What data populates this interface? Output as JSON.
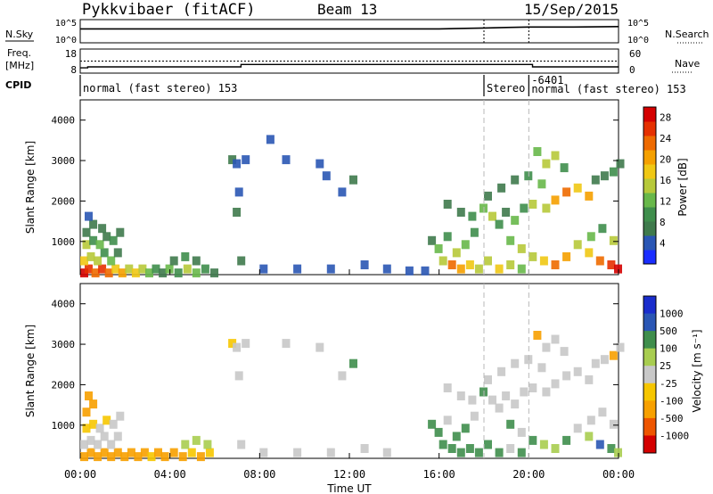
{
  "header": {
    "radar": "Pykkvibaer (fitACF)",
    "beam": "Beam 13",
    "date": "15/Sep/2015"
  },
  "left_labels": {
    "nsky": "N.Sky",
    "freq_line1": "Freq.",
    "freq_line2": "[MHz]",
    "cpid": "CPID"
  },
  "right_labels": {
    "nsearch": "N.Search",
    "nave": "Nave"
  },
  "chart_data": [
    {
      "type": "line",
      "panel": "noise",
      "left_ticks": [
        "10^5",
        "10^0"
      ],
      "right_ticks": [
        "10^5",
        "10^0"
      ],
      "series": [
        {
          "name": "N.Sky",
          "x": [
            "00:00",
            "02:00",
            "04:00",
            "06:00",
            "08:00",
            "10:00",
            "12:00",
            "14:00",
            "16:00",
            "18:00",
            "19:00",
            "20:00",
            "22:00",
            "24:00"
          ],
          "y": [
            3.0,
            3.0,
            3.0,
            3.0,
            3.0,
            3.0,
            3.0,
            3.0,
            3.0,
            3.2,
            3.3,
            3.4,
            3.4,
            3.5
          ]
        },
        {
          "name": "N.Search",
          "x": [
            "00:00",
            "24:00"
          ],
          "y": [
            null,
            null
          ]
        }
      ]
    },
    {
      "type": "line",
      "panel": "frequency",
      "left_ticks": [
        "18",
        "8"
      ],
      "right_ticks": [
        "60",
        "0"
      ],
      "series": [
        {
          "name": "Freq.",
          "x": [
            "00:00",
            "00:20",
            "03:00",
            "07:00",
            "07:10",
            "13:30",
            "14:00",
            "18:00",
            "20:00",
            "20:10",
            "24:00"
          ],
          "y": [
            10.2,
            10.6,
            10.6,
            10.6,
            11.6,
            11.6,
            11.6,
            11.6,
            11.6,
            10.6,
            10.6
          ]
        },
        {
          "name": "Nave",
          "x": [
            "00:00",
            "24:00"
          ],
          "y": [
            30,
            30
          ]
        }
      ]
    },
    {
      "type": "table",
      "panel": "cpid",
      "segments": [
        {
          "start": "00:00",
          "end": "18:00",
          "label": "normal (fast stereo) 153"
        },
        {
          "start": "18:00",
          "end": "20:00",
          "label": "Stereo"
        },
        {
          "start": "20:00",
          "end": "24:00",
          "label": "-6401"
        },
        {
          "start": "20:00",
          "end": "24:00",
          "label": "normal (fast stereo) 153"
        }
      ]
    },
    {
      "type": "heatmap",
      "panel": "power",
      "title": "",
      "xlabel": "",
      "ylabel": "Slant Range [km]",
      "xlim": [
        "00:00",
        "24:00"
      ],
      "ylim": [
        180,
        4500
      ],
      "yticks": [
        1000,
        2000,
        3000,
        4000
      ],
      "colorbar_label": "Power [dB]",
      "colorbar_ticks": [
        4,
        8,
        12,
        16,
        20,
        24,
        28
      ],
      "colorbar_range": [
        0,
        30
      ],
      "cells_t_h_r_value": [
        [
          0.0,
          200,
          28
        ],
        [
          0.2,
          300,
          26
        ],
        [
          0.5,
          200,
          24
        ],
        [
          0.8,
          300,
          27
        ],
        [
          1.1,
          200,
          22
        ],
        [
          1.4,
          300,
          18
        ],
        [
          1.7,
          200,
          20
        ],
        [
          2.0,
          300,
          16
        ],
        [
          2.3,
          200,
          18
        ],
        [
          2.6,
          300,
          14
        ],
        [
          2.9,
          200,
          12
        ],
        [
          3.2,
          300,
          10
        ],
        [
          0.0,
          500,
          18
        ],
        [
          0.3,
          600,
          14
        ],
        [
          0.6,
          500,
          16
        ],
        [
          0.9,
          700,
          10
        ],
        [
          1.2,
          500,
          12
        ],
        [
          1.5,
          700,
          8
        ],
        [
          0.1,
          900,
          14
        ],
        [
          0.4,
          1000,
          10
        ],
        [
          0.7,
          900,
          12
        ],
        [
          1.0,
          1100,
          8
        ],
        [
          1.3,
          1000,
          9
        ],
        [
          1.6,
          1200,
          6
        ],
        [
          0.1,
          1200,
          8
        ],
        [
          0.4,
          1400,
          6
        ],
        [
          0.8,
          1300,
          7
        ],
        [
          0.2,
          1600,
          5
        ],
        [
          3.5,
          200,
          8
        ],
        [
          3.8,
          300,
          12
        ],
        [
          4.2,
          200,
          10
        ],
        [
          4.6,
          300,
          14
        ],
        [
          5.0,
          200,
          12
        ],
        [
          5.4,
          300,
          10
        ],
        [
          5.8,
          200,
          8
        ],
        [
          4.0,
          500,
          7
        ],
        [
          4.5,
          600,
          9
        ],
        [
          5.0,
          500,
          8
        ],
        [
          6.6,
          3000,
          6
        ],
        [
          6.8,
          2900,
          5
        ],
        [
          6.8,
          1700,
          6
        ],
        [
          6.9,
          2200,
          5
        ],
        [
          7.2,
          3000,
          5
        ],
        [
          8.3,
          3500,
          4
        ],
        [
          9.0,
          3000,
          5
        ],
        [
          10.5,
          2900,
          5
        ],
        [
          10.8,
          2600,
          4
        ],
        [
          12.0,
          2500,
          6
        ],
        [
          11.5,
          2200,
          5
        ],
        [
          7.0,
          500,
          6
        ],
        [
          8.0,
          300,
          5
        ],
        [
          9.5,
          300,
          5
        ],
        [
          11.0,
          300,
          4
        ],
        [
          12.5,
          400,
          5
        ],
        [
          13.5,
          300,
          4
        ],
        [
          14.5,
          250,
          4
        ],
        [
          15.2,
          250,
          5
        ],
        [
          15.5,
          1000,
          8
        ],
        [
          15.8,
          800,
          12
        ],
        [
          16.2,
          1100,
          10
        ],
        [
          16.6,
          700,
          14
        ],
        [
          17.0,
          900,
          12
        ],
        [
          17.4,
          1200,
          10
        ],
        [
          16.0,
          500,
          16
        ],
        [
          16.4,
          400,
          22
        ],
        [
          16.8,
          300,
          20
        ],
        [
          17.2,
          400,
          18
        ],
        [
          17.6,
          300,
          16
        ],
        [
          18.0,
          500,
          14
        ],
        [
          16.2,
          1900,
          6
        ],
        [
          16.8,
          1700,
          8
        ],
        [
          17.3,
          1600,
          10
        ],
        [
          17.8,
          1800,
          12
        ],
        [
          18.2,
          1600,
          14
        ],
        [
          18.5,
          1400,
          10
        ],
        [
          18.8,
          1700,
          8
        ],
        [
          19.2,
          1500,
          12
        ],
        [
          19.6,
          1800,
          10
        ],
        [
          20.0,
          1900,
          14
        ],
        [
          18.0,
          2100,
          8
        ],
        [
          18.6,
          2300,
          6
        ],
        [
          19.2,
          2500,
          8
        ],
        [
          19.8,
          2600,
          10
        ],
        [
          20.4,
          2400,
          12
        ],
        [
          20.6,
          1800,
          16
        ],
        [
          21.0,
          2000,
          20
        ],
        [
          21.5,
          2200,
          22
        ],
        [
          22.0,
          2300,
          18
        ],
        [
          22.5,
          2100,
          20
        ],
        [
          20.2,
          3200,
          12
        ],
        [
          20.6,
          2900,
          16
        ],
        [
          21.0,
          3100,
          14
        ],
        [
          21.4,
          2800,
          10
        ],
        [
          22.8,
          2500,
          8
        ],
        [
          23.2,
          2600,
          6
        ],
        [
          23.6,
          2700,
          10
        ],
        [
          23.9,
          2900,
          8
        ],
        [
          19.0,
          1000,
          12
        ],
        [
          19.5,
          800,
          14
        ],
        [
          20.0,
          600,
          16
        ],
        [
          20.5,
          500,
          18
        ],
        [
          21.0,
          400,
          22
        ],
        [
          21.5,
          600,
          20
        ],
        [
          22.0,
          900,
          16
        ],
        [
          22.5,
          700,
          18
        ],
        [
          23.0,
          500,
          24
        ],
        [
          23.5,
          400,
          26
        ],
        [
          23.8,
          300,
          28
        ],
        [
          22.6,
          1100,
          12
        ],
        [
          23.1,
          1300,
          10
        ],
        [
          23.6,
          1000,
          14
        ],
        [
          18.5,
          300,
          18
        ],
        [
          19.0,
          400,
          16
        ],
        [
          19.5,
          300,
          12
        ]
      ]
    },
    {
      "type": "heatmap",
      "panel": "velocity",
      "title": "",
      "xlabel": "Time UT",
      "ylabel": "Slant Range [km]",
      "xlim": [
        "00:00",
        "24:00"
      ],
      "ylim": [
        180,
        4500
      ],
      "yticks": [
        1000,
        2000,
        3000,
        4000
      ],
      "xticks": [
        "00:00",
        "04:00",
        "08:00",
        "12:00",
        "16:00",
        "20:00",
        "00:00"
      ],
      "colorbar_label": "Velocity [m s⁻¹]",
      "colorbar_ticks": [
        1000,
        500,
        100,
        25,
        -25,
        -100,
        -500,
        -1000
      ],
      "cells_t_h_r_value": [
        [
          0.0,
          200,
          -300
        ],
        [
          0.3,
          300,
          -200
        ],
        [
          0.6,
          200,
          -150
        ],
        [
          0.9,
          300,
          -250
        ],
        [
          1.2,
          200,
          -120
        ],
        [
          1.5,
          300,
          -180
        ],
        [
          1.8,
          200,
          -100
        ],
        [
          2.1,
          300,
          -150
        ],
        [
          2.4,
          200,
          -110
        ],
        [
          2.7,
          300,
          -130
        ],
        [
          3.0,
          200,
          -90
        ],
        [
          3.3,
          300,
          -120
        ],
        [
          0.0,
          500,
          0
        ],
        [
          0.3,
          600,
          10
        ],
        [
          0.6,
          500,
          -10
        ],
        [
          0.9,
          700,
          5
        ],
        [
          1.2,
          500,
          0
        ],
        [
          1.5,
          700,
          -5
        ],
        [
          0.1,
          900,
          -60
        ],
        [
          0.4,
          1000,
          -30
        ],
        [
          0.7,
          900,
          0
        ],
        [
          1.0,
          1100,
          -80
        ],
        [
          1.3,
          1000,
          0
        ],
        [
          1.6,
          1200,
          10
        ],
        [
          0.1,
          1300,
          -200
        ],
        [
          0.4,
          1500,
          -150
        ],
        [
          0.2,
          1700,
          -120
        ],
        [
          3.6,
          200,
          -150
        ],
        [
          4.0,
          300,
          -120
        ],
        [
          4.4,
          200,
          -100
        ],
        [
          4.8,
          300,
          -90
        ],
        [
          5.2,
          200,
          -110
        ],
        [
          5.6,
          300,
          -80
        ],
        [
          4.5,
          500,
          60
        ],
        [
          5.0,
          600,
          40
        ],
        [
          5.5,
          500,
          80
        ],
        [
          6.6,
          3000,
          -60
        ],
        [
          6.8,
          2900,
          0
        ],
        [
          6.9,
          2200,
          0
        ],
        [
          7.2,
          3000,
          0
        ],
        [
          9.0,
          3000,
          0
        ],
        [
          10.5,
          2900,
          0
        ],
        [
          12.0,
          2500,
          300
        ],
        [
          11.5,
          2200,
          0
        ],
        [
          7.0,
          500,
          0
        ],
        [
          8.0,
          300,
          0
        ],
        [
          9.5,
          300,
          0
        ],
        [
          11.0,
          300,
          0
        ],
        [
          12.5,
          400,
          0
        ],
        [
          13.5,
          300,
          0
        ],
        [
          15.5,
          1000,
          200
        ],
        [
          15.8,
          800,
          150
        ],
        [
          16.2,
          1100,
          0
        ],
        [
          16.6,
          700,
          300
        ],
        [
          17.0,
          900,
          200
        ],
        [
          17.4,
          1200,
          0
        ],
        [
          16.0,
          500,
          250
        ],
        [
          16.4,
          400,
          300
        ],
        [
          16.8,
          300,
          200
        ],
        [
          17.2,
          400,
          250
        ],
        [
          17.6,
          300,
          200
        ],
        [
          18.0,
          500,
          150
        ],
        [
          16.2,
          1900,
          0
        ],
        [
          16.8,
          1700,
          0
        ],
        [
          17.3,
          1600,
          0
        ],
        [
          17.8,
          1800,
          150
        ],
        [
          18.2,
          1600,
          0
        ],
        [
          18.5,
          1400,
          0
        ],
        [
          18.8,
          1700,
          0
        ],
        [
          19.2,
          1500,
          0
        ],
        [
          19.6,
          1800,
          0
        ],
        [
          20.0,
          1900,
          0
        ],
        [
          18.0,
          2100,
          0
        ],
        [
          18.6,
          2300,
          0
        ],
        [
          19.2,
          2500,
          0
        ],
        [
          19.8,
          2600,
          0
        ],
        [
          20.4,
          2400,
          0
        ],
        [
          20.6,
          1800,
          0
        ],
        [
          21.0,
          2000,
          0
        ],
        [
          21.5,
          2200,
          0
        ],
        [
          22.0,
          2300,
          0
        ],
        [
          22.5,
          2100,
          0
        ],
        [
          20.2,
          3200,
          -100
        ],
        [
          20.6,
          2900,
          0
        ],
        [
          21.0,
          3100,
          0
        ],
        [
          21.4,
          2800,
          0
        ],
        [
          22.8,
          2500,
          0
        ],
        [
          23.2,
          2600,
          0
        ],
        [
          23.6,
          2700,
          -120
        ],
        [
          23.9,
          2900,
          0
        ],
        [
          19.0,
          1000,
          150
        ],
        [
          19.5,
          800,
          0
        ],
        [
          20.0,
          600,
          200
        ],
        [
          20.5,
          500,
          100
        ],
        [
          21.0,
          400,
          60
        ],
        [
          21.5,
          600,
          150
        ],
        [
          22.0,
          900,
          0
        ],
        [
          22.5,
          700,
          80
        ],
        [
          23.0,
          500,
          600
        ],
        [
          23.5,
          400,
          200
        ],
        [
          23.8,
          300,
          100
        ],
        [
          22.6,
          1100,
          0
        ],
        [
          23.1,
          1300,
          0
        ],
        [
          23.6,
          1000,
          0
        ],
        [
          18.5,
          300,
          250
        ],
        [
          19.0,
          400,
          0
        ],
        [
          19.5,
          300,
          200
        ]
      ]
    }
  ],
  "colors": {
    "power_scale": [
      "#1a2dff",
      "#2a56b4",
      "#3f7a4c",
      "#3f8e4c",
      "#68b84a",
      "#b7c93a",
      "#f0c814",
      "#f5a000",
      "#ee6a00",
      "#e53000",
      "#d40000"
    ],
    "velocity_scale": [
      "#d40000",
      "#ee5500",
      "#f7a000",
      "#f6c600",
      "#c8c8c8",
      "#a8cd50",
      "#3f8e4c",
      "#2a56b4",
      "#1a2dcc"
    ],
    "mode_change_line": "#b8b8b8"
  }
}
